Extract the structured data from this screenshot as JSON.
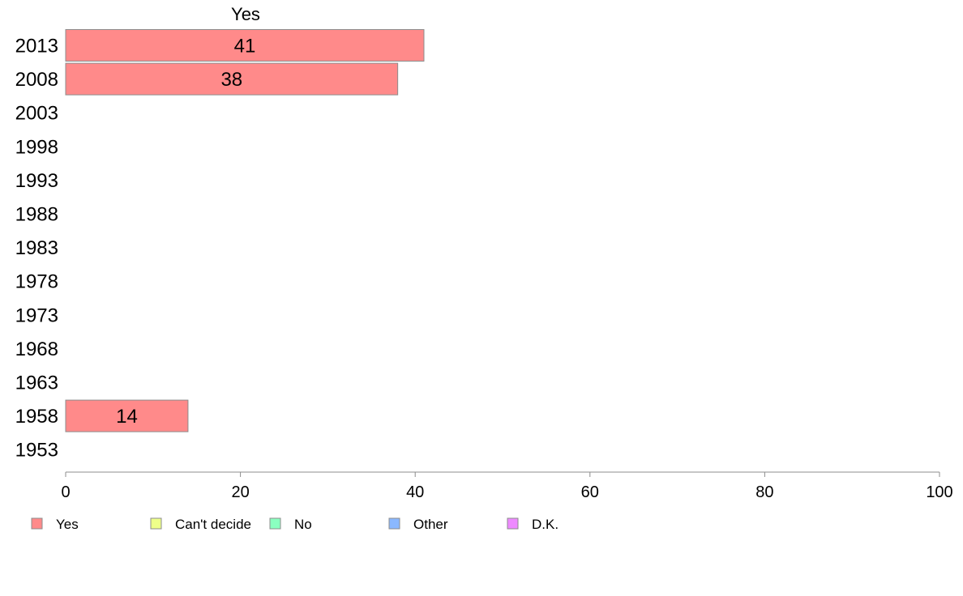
{
  "chart_data": {
    "type": "bar",
    "orientation": "horizontal",
    "stacked": true,
    "title": "",
    "xlabel": "",
    "ylabel": "",
    "xlim": [
      0,
      100
    ],
    "xticks": [
      0,
      20,
      40,
      60,
      80,
      100
    ],
    "categories": [
      "2013",
      "2008",
      "2003",
      "1998",
      "1993",
      "1988",
      "1983",
      "1978",
      "1973",
      "1968",
      "1963",
      "1958",
      "1953"
    ],
    "series": [
      {
        "name": "Yes",
        "color": "#ff8a8a",
        "values": [
          41,
          38,
          null,
          null,
          null,
          null,
          null,
          null,
          null,
          null,
          null,
          14,
          null
        ]
      },
      {
        "name": "Can't decide",
        "color": "#eeff8a",
        "values": [
          null,
          null,
          null,
          null,
          null,
          null,
          null,
          null,
          null,
          null,
          null,
          null,
          null
        ]
      },
      {
        "name": "No",
        "color": "#8affc0",
        "values": [
          null,
          null,
          null,
          null,
          null,
          null,
          null,
          null,
          null,
          null,
          null,
          null,
          null
        ]
      },
      {
        "name": "Other",
        "color": "#8ab8ff",
        "values": [
          null,
          null,
          null,
          null,
          null,
          null,
          null,
          null,
          null,
          null,
          null,
          null,
          null
        ]
      },
      {
        "name": "D.K.",
        "color": "#ee8aff",
        "values": [
          null,
          null,
          null,
          null,
          null,
          null,
          null,
          null,
          null,
          null,
          null,
          null,
          null
        ]
      }
    ],
    "segment_header": "Yes",
    "grid": false,
    "legend_position": "bottom"
  }
}
